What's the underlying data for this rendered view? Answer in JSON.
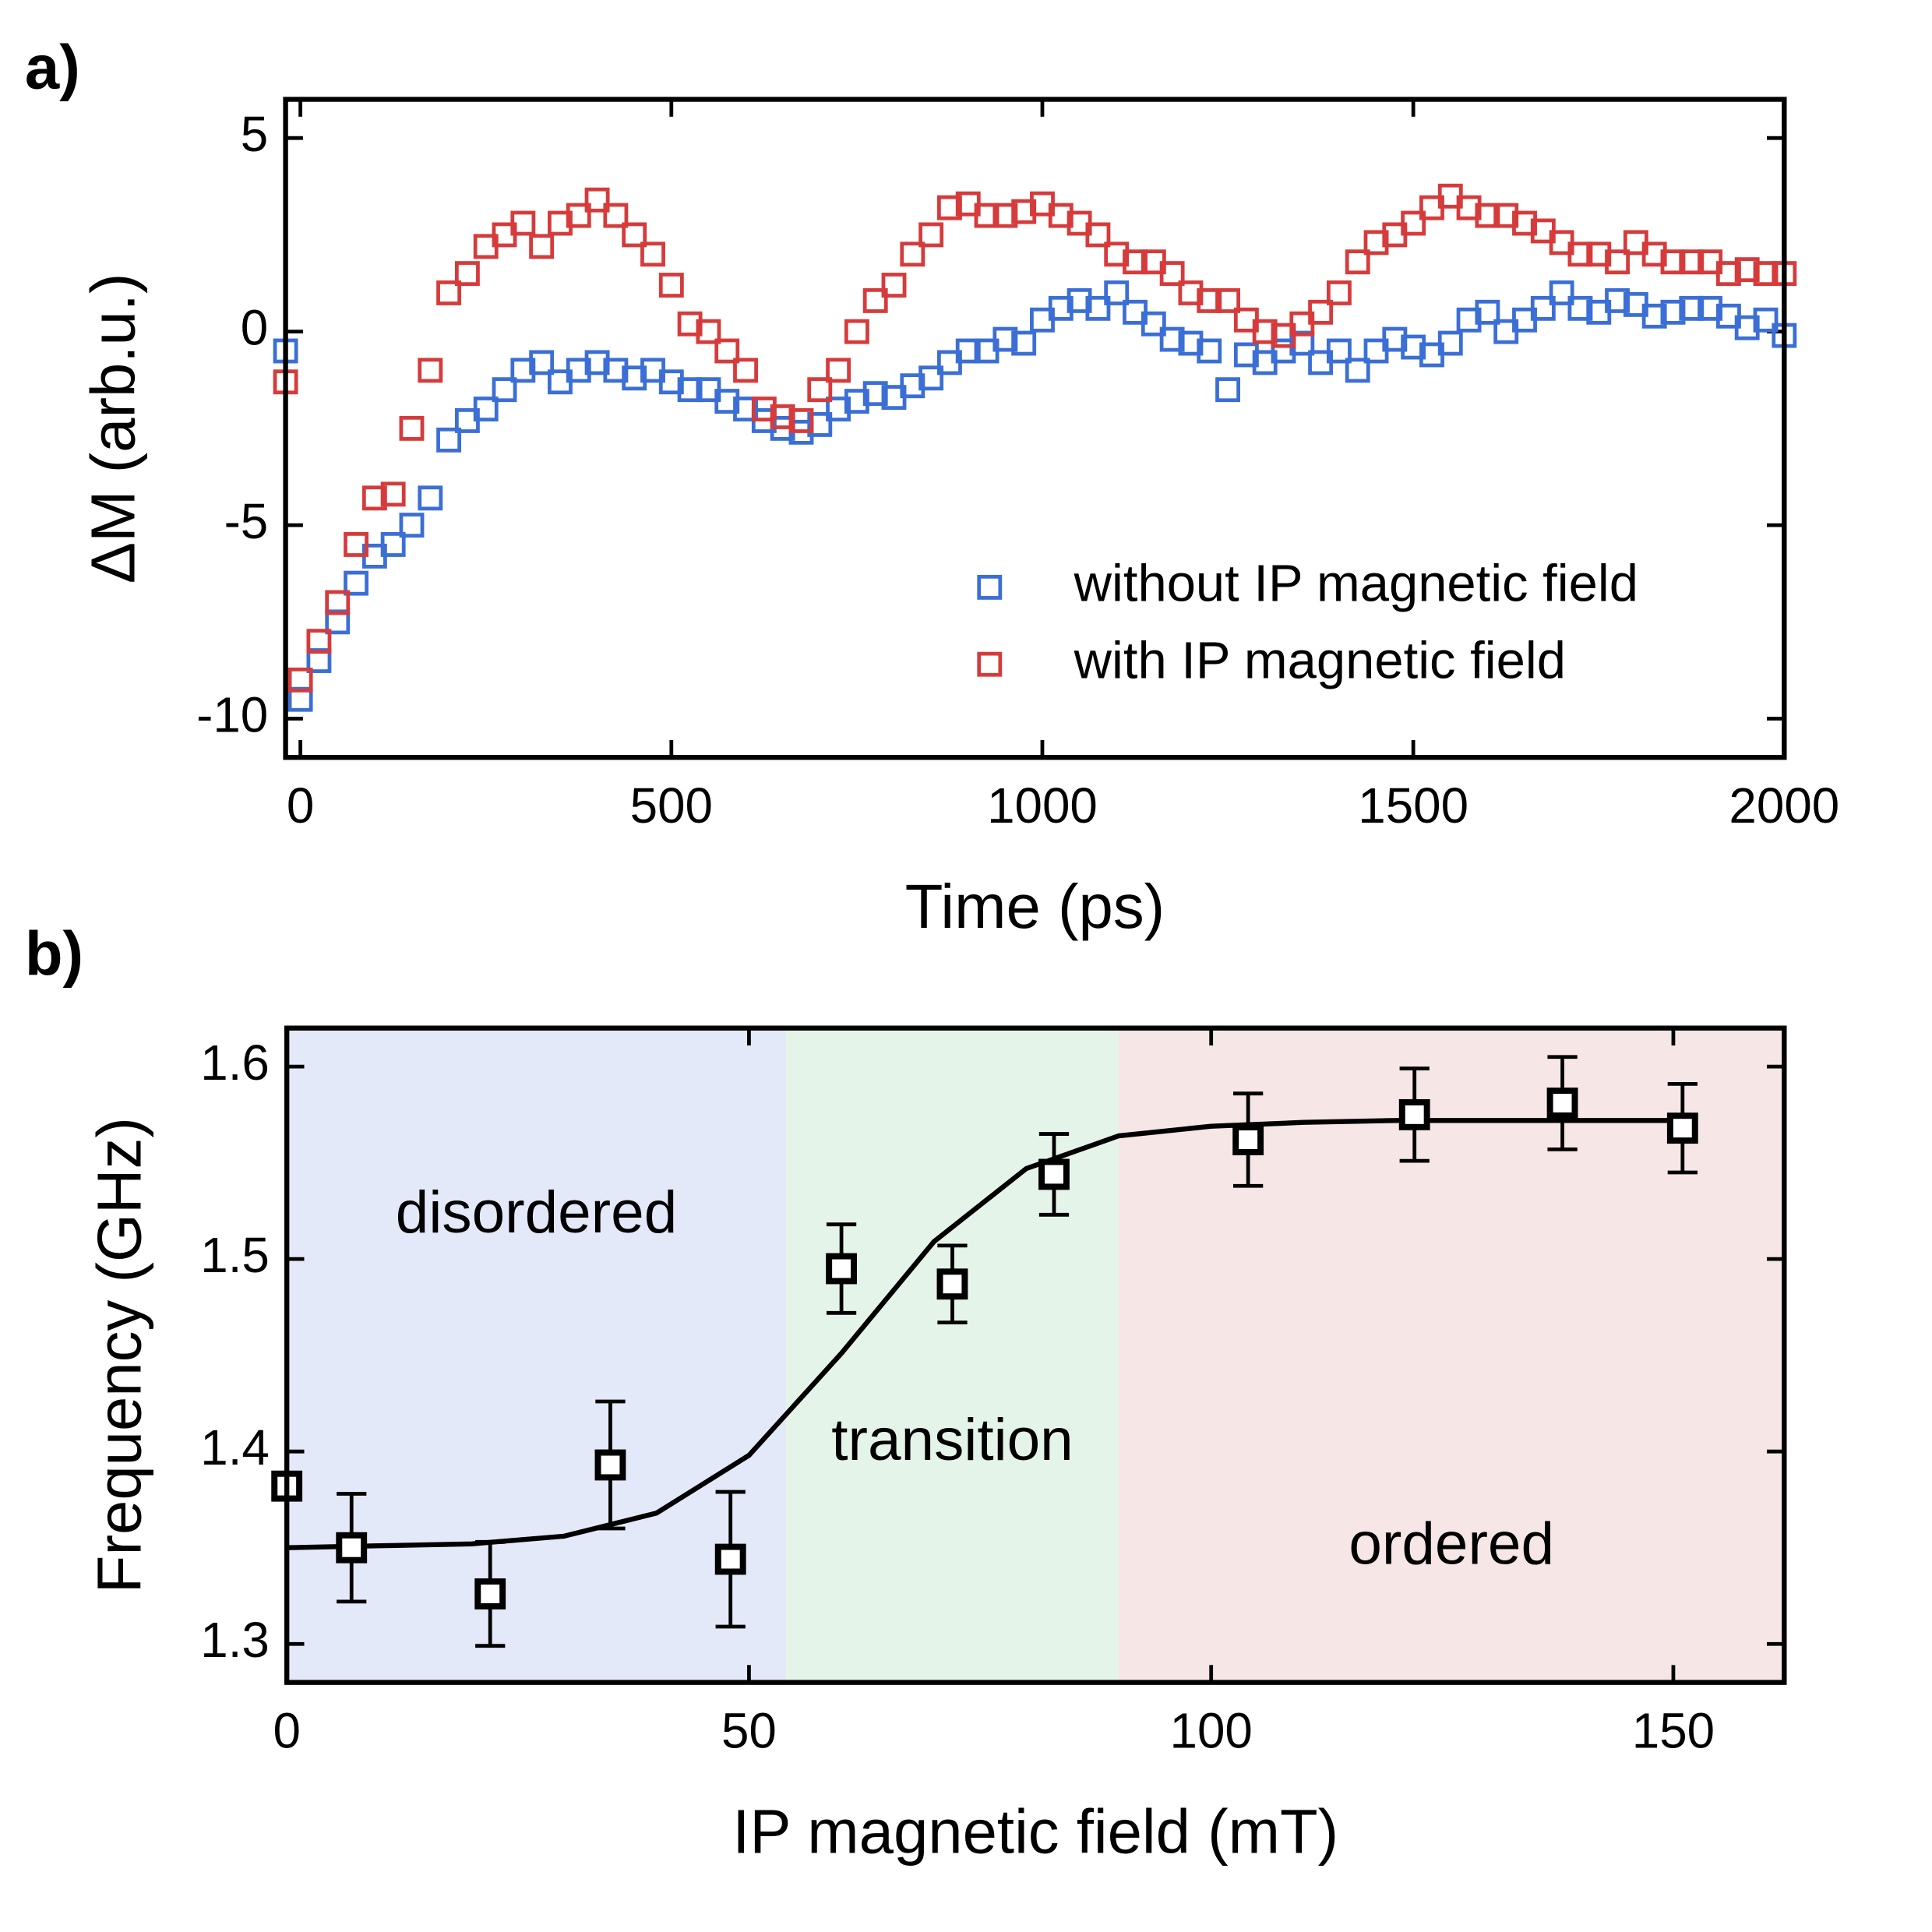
{
  "chart_data": [
    {
      "type": "scatter",
      "panel_label": "a)",
      "x_label": "Time (ps)",
      "y_label": "ΔM (arb.u.)",
      "xlim": [
        -20,
        2000
      ],
      "ylim": [
        -11,
        6
      ],
      "xticks": [
        0,
        500,
        1000,
        1500,
        2000
      ],
      "yticks": [
        -10,
        -5,
        0,
        5
      ],
      "legend": "lower right",
      "x": [
        -20,
        0,
        25,
        50,
        75,
        100,
        125,
        150,
        175,
        200,
        225,
        250,
        275,
        300,
        325,
        350,
        375,
        400,
        425,
        450,
        475,
        500,
        525,
        550,
        575,
        600,
        625,
        650,
        675,
        700,
        725,
        750,
        775,
        800,
        825,
        850,
        875,
        900,
        925,
        950,
        975,
        1000,
        1025,
        1050,
        1075,
        1100,
        1125,
        1150,
        1175,
        1200,
        1225,
        1250,
        1275,
        1300,
        1325,
        1350,
        1375,
        1400,
        1425,
        1450,
        1475,
        1500,
        1525,
        1550,
        1575,
        1600,
        1625,
        1650,
        1675,
        1700,
        1725,
        1750,
        1775,
        1800,
        1825,
        1850,
        1875,
        1900,
        1925,
        1950,
        1975,
        2000
      ],
      "series": [
        {
          "name": "without IP magnetic field",
          "color": "#3b6fd6",
          "values": [
            -0.5,
            -9.5,
            -8.5,
            -7.5,
            -6.5,
            -5.8,
            -5.5,
            -5,
            -4.3,
            -2.8,
            -2.3,
            -2,
            -1.5,
            -1,
            -0.8,
            -1.3,
            -1,
            -0.8,
            -1,
            -1.2,
            -1,
            -1.3,
            -1.5,
            -1.5,
            -1.8,
            -2,
            -2.3,
            -2.5,
            -2.6,
            -2.4,
            -2,
            -1.8,
            -1.6,
            -1.7,
            -1.4,
            -1.2,
            -0.8,
            -0.5,
            -0.5,
            -0.2,
            -0.3,
            0.3,
            0.6,
            0.8,
            0.6,
            1.0,
            0.5,
            0.2,
            -0.2,
            -0.3,
            -0.5,
            -1.5,
            -0.6,
            -0.8,
            -0.5,
            -0.3,
            -0.8,
            -0.5,
            -1.0,
            -0.5,
            -0.2,
            -0.4,
            -0.6,
            -0.3,
            0.3,
            0.5,
            0.0,
            0.3,
            0.6,
            1.0,
            0.6,
            0.5,
            0.8,
            0.7,
            0.4,
            0.5,
            0.6,
            0.6,
            0.4,
            0.1,
            0.3,
            -0.1
          ]
        },
        {
          "name": "with IP magnetic field",
          "color": "#d63b3b",
          "values": [
            -1.3,
            -9,
            -8,
            -7,
            -5.5,
            -4.3,
            -4.2,
            -2.5,
            -1,
            1,
            1.5,
            2.2,
            2.5,
            2.8,
            2.2,
            2.8,
            3,
            3.4,
            3,
            2.5,
            2,
            1.2,
            0.2,
            0,
            -0.5,
            -1,
            -2,
            -2.2,
            -2.3,
            -1.5,
            -1,
            0,
            0.8,
            1.2,
            2,
            2.5,
            3.2,
            3.3,
            3,
            3,
            3.1,
            3.3,
            3,
            2.8,
            2.5,
            2,
            1.8,
            1.8,
            1.5,
            1,
            0.8,
            0.8,
            0.3,
            0,
            -0.1,
            0.2,
            0.5,
            1,
            1.8,
            2.3,
            2.5,
            2.8,
            3.2,
            3.5,
            3.2,
            3,
            3,
            2.8,
            2.6,
            2.3,
            2,
            2,
            1.8,
            2.3,
            2,
            1.8,
            1.8,
            1.8,
            1.5,
            1.6,
            1.5,
            1.5
          ]
        }
      ]
    },
    {
      "type": "errorbar",
      "panel_label": "b)",
      "x_label": "IP magnetic field (mT)",
      "y_label": "Frequency (GHz)",
      "xlim": [
        0,
        162
      ],
      "ylim": [
        1.28,
        1.62
      ],
      "xticks": [
        0,
        50,
        100,
        150
      ],
      "yticks": [
        1.3,
        1.4,
        1.5,
        1.6
      ],
      "regions": [
        {
          "label": "disordered",
          "from": 0,
          "to": 54,
          "color": "#e3e9f8"
        },
        {
          "label": "transition",
          "from": 54,
          "to": 90,
          "color": "#e5f4e8"
        },
        {
          "label": "ordered",
          "from": 90,
          "to": 162,
          "color": "#f6e6e6"
        }
      ],
      "points": {
        "color": "#000000",
        "x": [
          0,
          7,
          22,
          35,
          48,
          60,
          72,
          83,
          104,
          122,
          138,
          151
        ],
        "y": [
          1.382,
          1.35,
          1.326,
          1.393,
          1.344,
          1.495,
          1.487,
          1.544,
          1.562,
          1.575,
          1.581,
          1.568
        ],
        "errors": [
          null,
          0.028,
          0.027,
          0.033,
          0.035,
          0.023,
          0.02,
          0.021,
          0.024,
          0.024,
          0.024,
          0.023
        ]
      },
      "fit": {
        "color": "#000000",
        "x": [
          0,
          10,
          20,
          30,
          40,
          50,
          60,
          70,
          80,
          90,
          100,
          110,
          120,
          130,
          140,
          150
        ],
        "y": [
          1.35,
          1.351,
          1.352,
          1.356,
          1.368,
          1.398,
          1.451,
          1.509,
          1.547,
          1.564,
          1.569,
          1.571,
          1.572,
          1.572,
          1.572,
          1.572
        ]
      }
    }
  ]
}
